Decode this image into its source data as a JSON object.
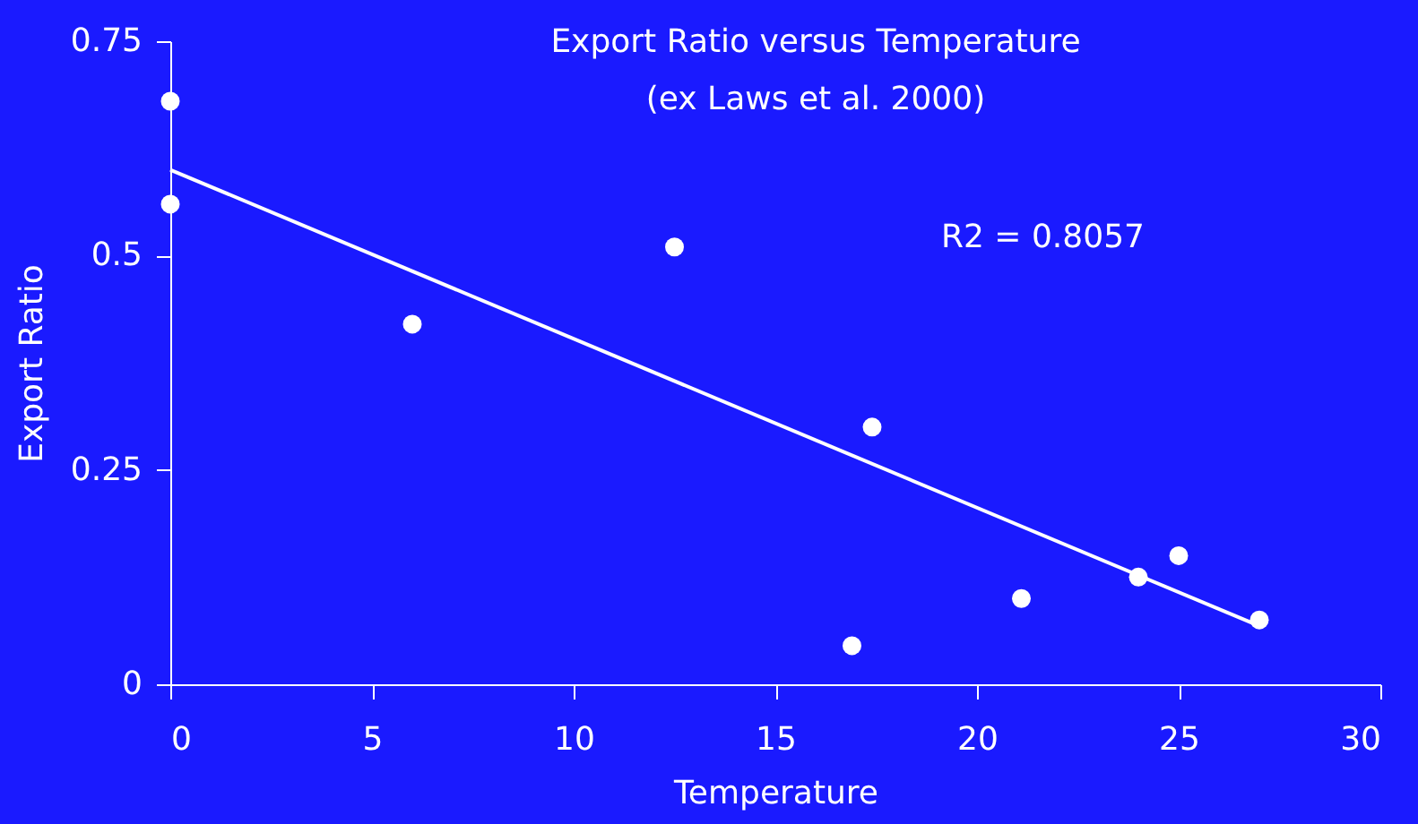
{
  "chart_data": {
    "type": "scatter",
    "title": "Export Ratio versus Temperature",
    "subtitle": "(ex Laws et al. 2000)",
    "xlabel": "Temperature",
    "ylabel": "Export Ratio",
    "xlim": [
      0,
      30
    ],
    "xticks": [
      0,
      5,
      10,
      15,
      20,
      25,
      30
    ],
    "ylim": [
      0,
      0.75
    ],
    "yticks": [
      0,
      0.25,
      0.5,
      0.75
    ],
    "grid": false,
    "annotations": [
      "R2 = 0.8057"
    ],
    "series": [
      {
        "color": "#ffffff",
        "marker": "circle",
        "x": [
          0,
          0,
          6.0,
          12.5,
          16.9,
          17.4,
          21.1,
          24.0,
          25.0,
          27.0
        ],
        "values": [
          0.68,
          0.56,
          0.42,
          0.51,
          0.045,
          0.3,
          0.1,
          0.125,
          0.15,
          0.075
        ]
      },
      {
        "type": "line",
        "color": "#ffffff",
        "line_style": "solid",
        "x": [
          0,
          27
        ],
        "values": [
          0.6,
          0.068
        ]
      }
    ]
  }
}
